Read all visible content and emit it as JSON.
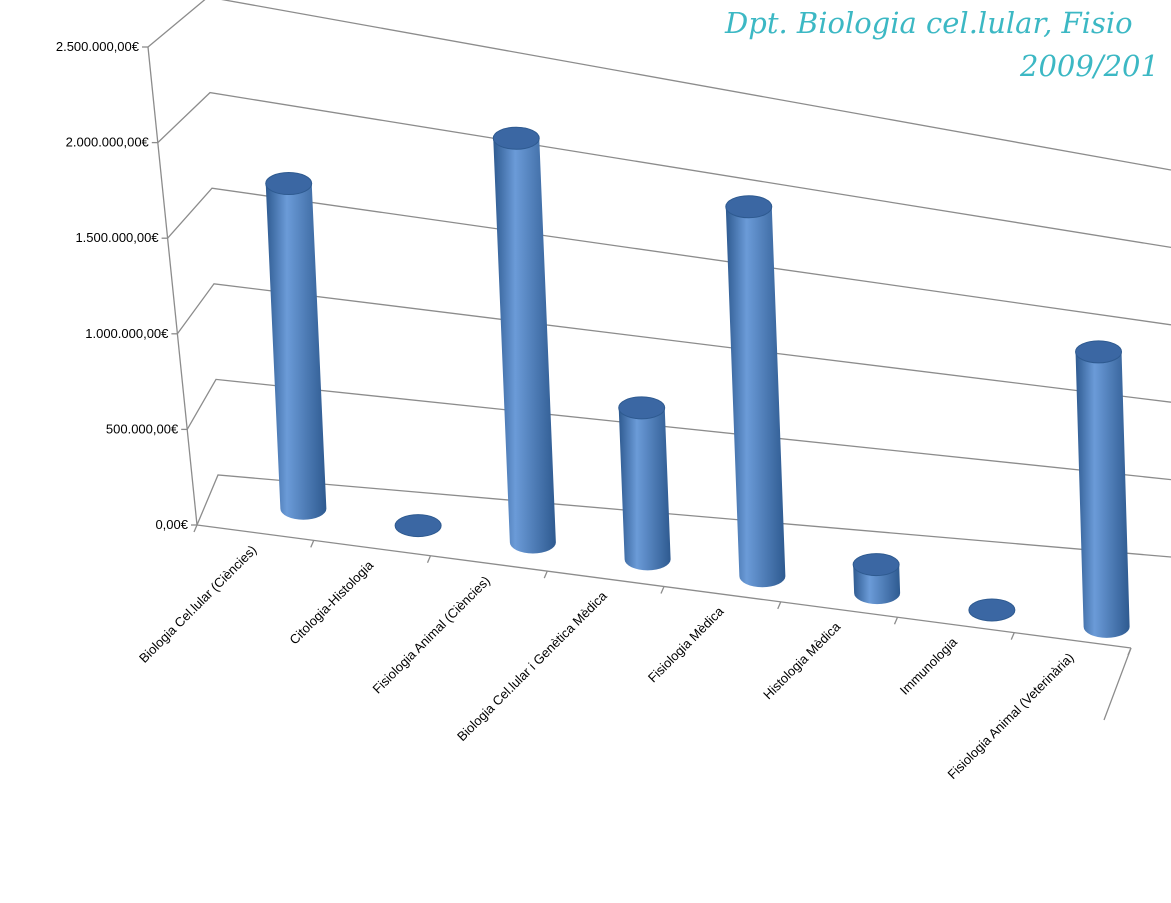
{
  "chart_data": {
    "type": "bar",
    "style": "3d-cylinder",
    "title_lines": [
      "Dpt. Biologia cel.lular, Fisio",
      "2009/201"
    ],
    "categories": [
      "Biologia Cel.lular (Ciències)",
      "Citologia-Histologia",
      "Fisiologia Animal (Ciències)",
      "Biologia Cel.lular i Genètica Mèdica",
      "Fisiologia Mèdica",
      "Histologia Mèdica",
      "Immunologia",
      "Fisiologia Animal (Veterinària)"
    ],
    "values": [
      1720000,
      0,
      2240000,
      860000,
      2150000,
      170000,
      0,
      1730000
    ],
    "ylim": [
      0,
      2500000
    ],
    "yticks": [
      "0,00€",
      "500.000,00€",
      "1.000.000,00€",
      "1.500.000,00€",
      "2.000.000,00€",
      "2.500.000,00€"
    ],
    "xlabel": "",
    "ylabel": "",
    "grid": true,
    "legend": "none",
    "colors": {
      "bar": "#4a7ebb",
      "bar_dark": "#2e5a90",
      "bar_light": "#6b9bd8",
      "top": "#3b67a3",
      "grid": "#8c8c8c",
      "title": "#3cb8c4"
    }
  }
}
